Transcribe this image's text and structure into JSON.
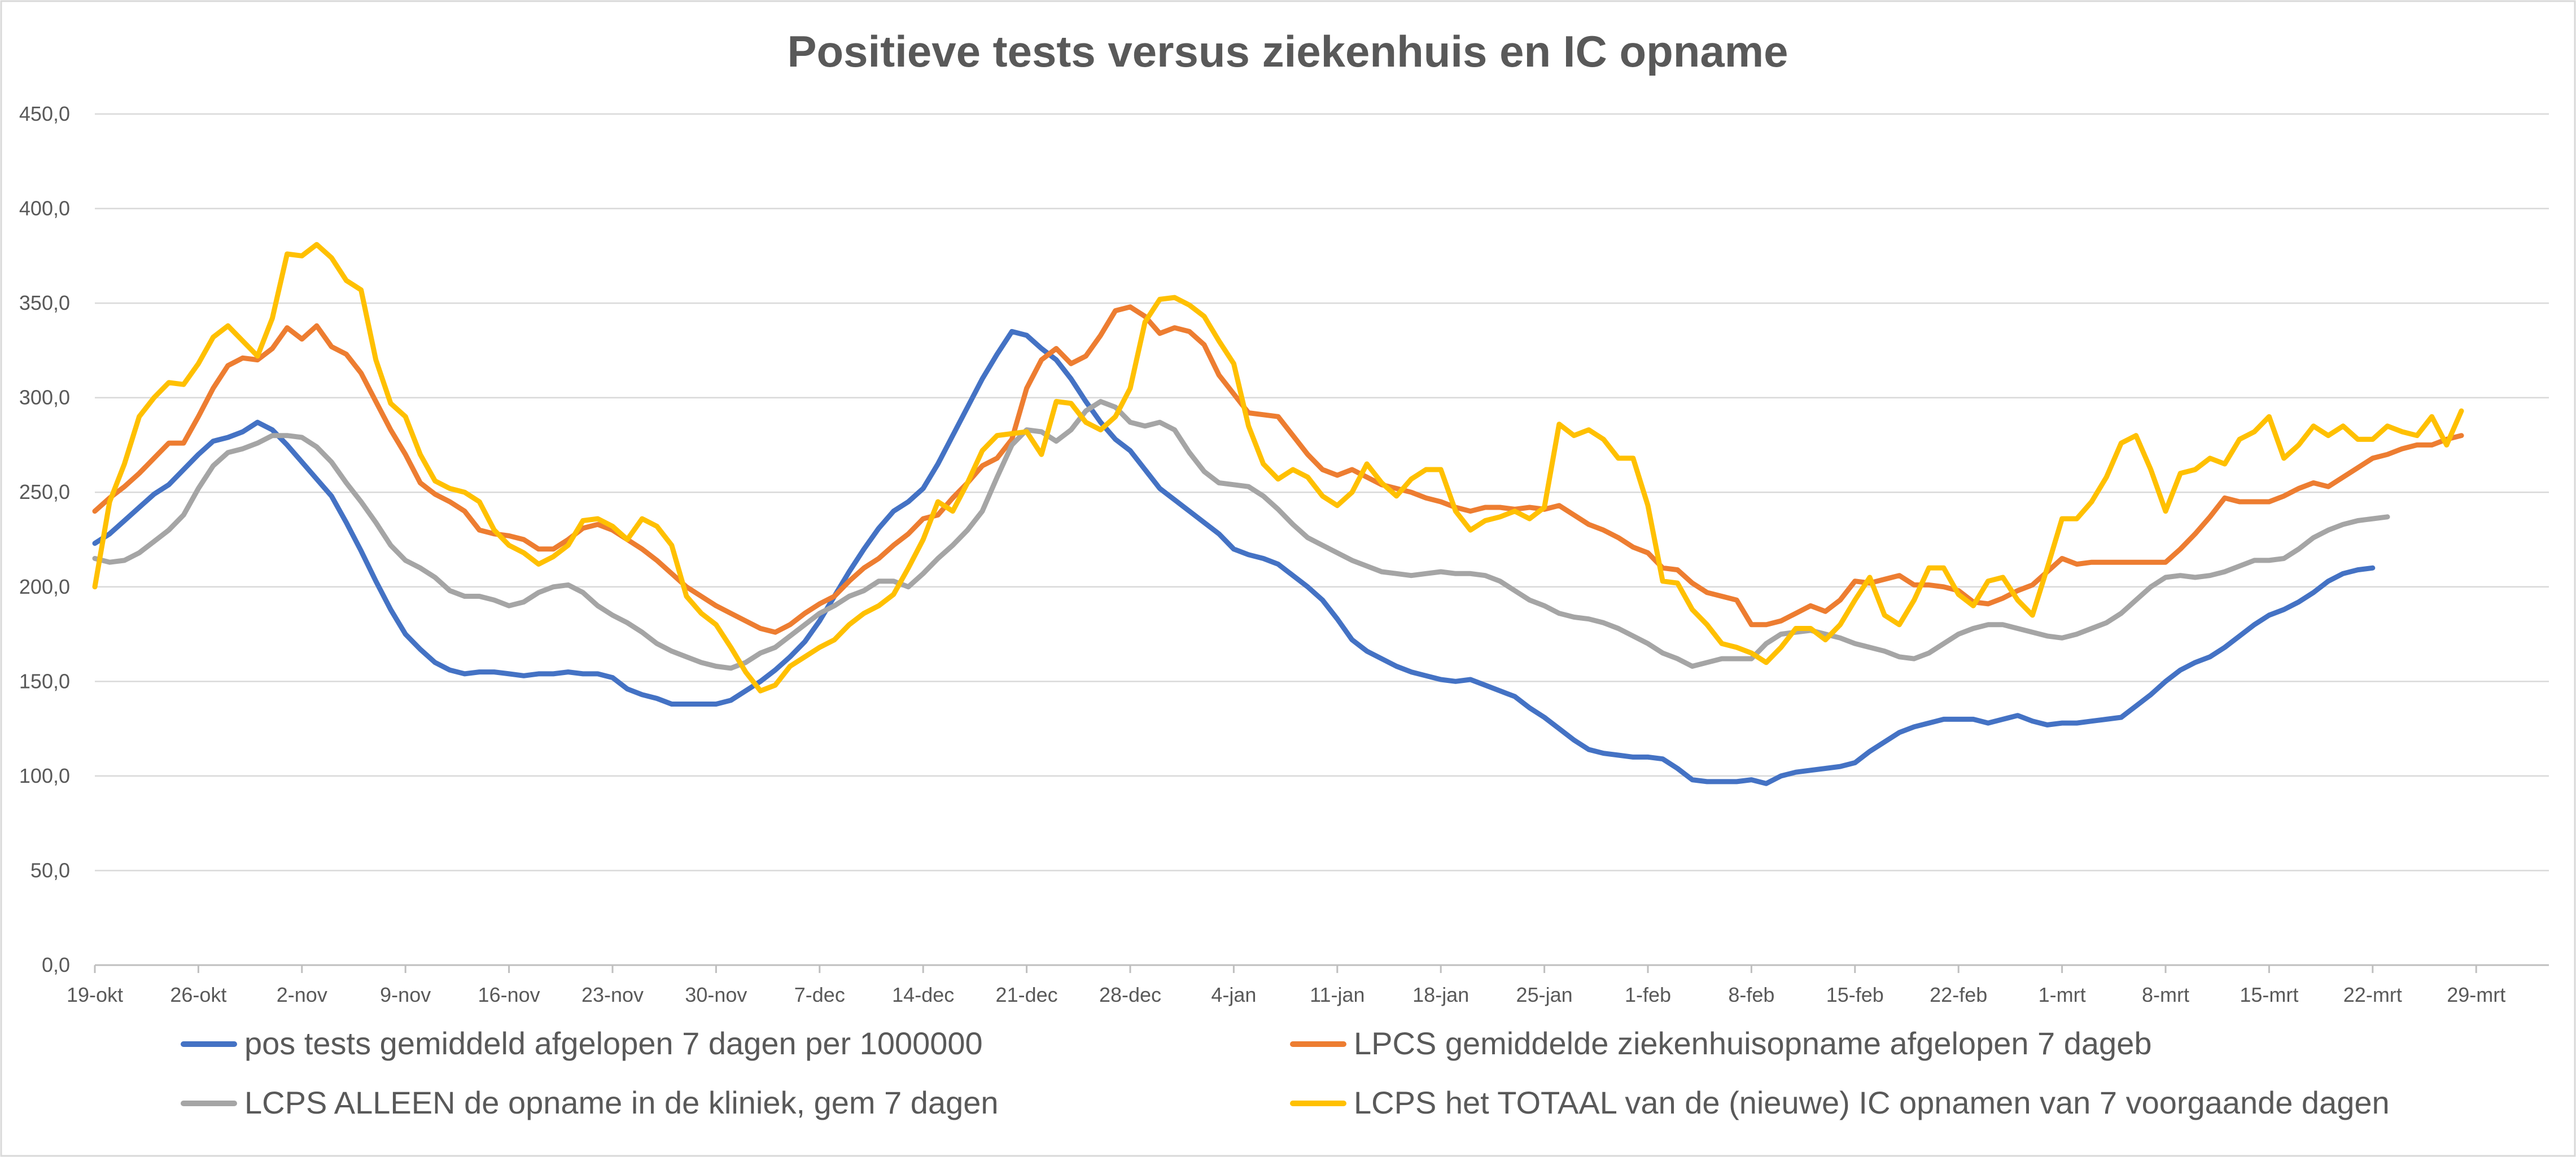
{
  "chart_data": {
    "type": "line",
    "title": "Positieve tests versus ziekenhuis en IC opname",
    "xlabel": "",
    "ylabel": "",
    "ylim": [
      0,
      450
    ],
    "yticks": [
      "0,0",
      "50,0",
      "100,0",
      "150,0",
      "200,0",
      "250,0",
      "300,0",
      "350,0",
      "400,0",
      "450,0"
    ],
    "grid": true,
    "legend_position": "bottom",
    "x_range": [
      "19-okt",
      "31-mrt"
    ],
    "x_tick_labels": [
      "19-okt",
      "26-okt",
      "2-nov",
      "9-nov",
      "16-nov",
      "23-nov",
      "30-nov",
      "7-dec",
      "14-dec",
      "21-dec",
      "28-dec",
      "4-jan",
      "11-jan",
      "18-jan",
      "25-jan",
      "1-feb",
      "8-feb",
      "15-feb",
      "22-feb",
      "1-mrt",
      "8-mrt",
      "15-mrt",
      "22-mrt",
      "29-mrt"
    ],
    "series": [
      {
        "name": "pos tests gemiddeld afgelopen 7 dagen per 1000000",
        "color": "#4472c4",
        "values": [
          223,
          228,
          235,
          242,
          249,
          254,
          262,
          270,
          277,
          279,
          282,
          287,
          283,
          275,
          266,
          257,
          248,
          234,
          219,
          203,
          188,
          175,
          167,
          160,
          156,
          154,
          155,
          155,
          154,
          153,
          154,
          154,
          155,
          154,
          154,
          152,
          146,
          143,
          141,
          138,
          138,
          138,
          138,
          140,
          145,
          150,
          156,
          163,
          171,
          182,
          195,
          208,
          220,
          231,
          240,
          245,
          252,
          265,
          280,
          295,
          310,
          323,
          335,
          333,
          326,
          320,
          310,
          298,
          287,
          278,
          272,
          262,
          252,
          246,
          240,
          234,
          228,
          220,
          217,
          215,
          212,
          206,
          200,
          193,
          183,
          172,
          166,
          162,
          158,
          155,
          153,
          151,
          150,
          151,
          148,
          145,
          142,
          136,
          131,
          125,
          119,
          114,
          112,
          111,
          110,
          110,
          109,
          104,
          98,
          97,
          97,
          97,
          98,
          96,
          100,
          102,
          103,
          104,
          105,
          107,
          113,
          118,
          123,
          126,
          128,
          130,
          130,
          130,
          128,
          130,
          132,
          129,
          127,
          128,
          128,
          129,
          130,
          131,
          137,
          143,
          150,
          156,
          160,
          163,
          168,
          174,
          180,
          185,
          188,
          192,
          197,
          203,
          207,
          209,
          210
        ]
      },
      {
        "name": "LPCS gemiddelde ziekenhuisopname afgelopen 7 dageb",
        "color": "#ed7d31",
        "values": [
          240,
          247,
          253,
          260,
          268,
          276,
          276,
          290,
          305,
          317,
          321,
          320,
          326,
          337,
          331,
          338,
          327,
          323,
          313,
          298,
          283,
          270,
          255,
          249,
          245,
          240,
          230,
          228,
          227,
          225,
          220,
          220,
          225,
          231,
          233,
          230,
          225,
          220,
          214,
          207,
          200,
          195,
          190,
          186,
          182,
          178,
          176,
          180,
          186,
          191,
          195,
          203,
          210,
          215,
          222,
          228,
          236,
          238,
          247,
          255,
          264,
          268,
          278,
          305,
          320,
          326,
          318,
          322,
          333,
          346,
          348,
          343,
          334,
          337,
          335,
          328,
          312,
          302,
          292,
          291,
          290,
          280,
          270,
          262,
          259,
          262,
          258,
          254,
          252,
          250,
          247,
          245,
          242,
          240,
          242,
          242,
          241,
          242,
          241,
          243,
          238,
          233,
          230,
          226,
          221,
          218,
          210,
          209,
          202,
          197,
          195,
          193,
          180,
          180,
          182,
          186,
          190,
          187,
          193,
          203,
          202,
          204,
          206,
          201,
          201,
          200,
          198,
          192,
          191,
          194,
          198,
          201,
          208,
          215,
          212,
          213,
          213,
          213,
          213,
          213,
          213,
          220,
          228,
          237,
          247,
          245,
          245,
          245,
          248,
          252,
          255,
          253,
          258,
          263,
          268,
          270,
          273,
          275,
          275,
          278,
          280
        ]
      },
      {
        "name": "LCPS ALLEEN de opname in de kliniek, gem 7 dagen",
        "color": "#a5a5a5",
        "values": [
          215,
          213,
          214,
          218,
          224,
          230,
          238,
          252,
          264,
          271,
          273,
          276,
          280,
          280,
          279,
          274,
          266,
          255,
          245,
          234,
          222,
          214,
          210,
          205,
          198,
          195,
          195,
          193,
          190,
          192,
          197,
          200,
          201,
          197,
          190,
          185,
          181,
          176,
          170,
          166,
          163,
          160,
          158,
          157,
          160,
          165,
          168,
          174,
          180,
          186,
          190,
          195,
          198,
          203,
          203,
          200,
          207,
          215,
          222,
          230,
          240,
          258,
          275,
          283,
          282,
          277,
          283,
          293,
          298,
          295,
          287,
          285,
          287,
          283,
          271,
          261,
          255,
          254,
          253,
          248,
          241,
          233,
          226,
          222,
          218,
          214,
          211,
          208,
          207,
          206,
          207,
          208,
          207,
          207,
          206,
          203,
          198,
          193,
          190,
          186,
          184,
          183,
          181,
          178,
          174,
          170,
          165,
          162,
          158,
          160,
          162,
          162,
          162,
          170,
          175,
          176,
          177,
          175,
          173,
          170,
          168,
          166,
          163,
          162,
          165,
          170,
          175,
          178,
          180,
          180,
          178,
          176,
          174,
          173,
          175,
          178,
          181,
          186,
          193,
          200,
          205,
          206,
          205,
          206,
          208,
          211,
          214,
          214,
          215,
          220,
          226,
          230,
          233,
          235,
          236,
          237
        ]
      },
      {
        "name": "LCPS het TOTAAL van de (nieuwe) IC opnamen van 7 voorgaande dagen",
        "color": "#ffc000",
        "values": [
          200,
          245,
          265,
          290,
          300,
          308,
          307,
          318,
          332,
          338,
          330,
          322,
          342,
          376,
          375,
          381,
          374,
          362,
          357,
          320,
          297,
          290,
          270,
          256,
          252,
          250,
          245,
          230,
          222,
          218,
          212,
          216,
          222,
          235,
          236,
          232,
          225,
          236,
          232,
          222,
          195,
          186,
          180,
          168,
          155,
          145,
          148,
          158,
          163,
          168,
          172,
          180,
          186,
          190,
          196,
          210,
          225,
          245,
          240,
          255,
          272,
          280,
          281,
          282,
          270,
          298,
          297,
          287,
          283,
          290,
          305,
          340,
          352,
          353,
          349,
          343,
          330,
          318,
          285,
          265,
          257,
          262,
          258,
          248,
          243,
          250,
          265,
          255,
          248,
          257,
          262,
          262,
          240,
          230,
          235,
          237,
          240,
          236,
          242,
          286,
          280,
          283,
          278,
          268,
          268,
          243,
          203,
          202,
          188,
          180,
          170,
          168,
          165,
          160,
          168,
          178,
          178,
          172,
          180,
          193,
          205,
          185,
          180,
          193,
          210,
          210,
          196,
          190,
          203,
          205,
          193,
          185,
          210,
          236,
          236,
          245,
          258,
          276,
          280,
          262,
          240,
          260,
          262,
          268,
          265,
          278,
          282,
          290,
          268,
          275,
          285,
          280,
          285,
          278,
          278,
          285,
          282,
          280,
          290,
          275,
          293
        ]
      }
    ]
  }
}
